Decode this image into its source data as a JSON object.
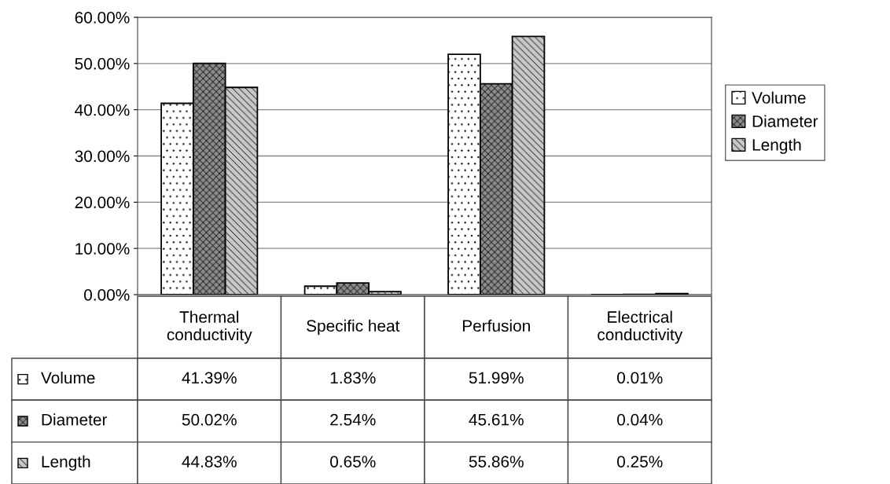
{
  "chart_data": {
    "type": "bar",
    "categories": [
      "Thermal\nconductivity",
      "Specific heat",
      "Perfusion",
      "Electrical\nconductivity"
    ],
    "series": [
      {
        "name": "Volume",
        "color": "#ffffff",
        "values": [
          41.39,
          1.83,
          51.99,
          0.01
        ],
        "value_labels": [
          "41.39%",
          "1.83%",
          "51.99%",
          "0.01%"
        ]
      },
      {
        "name": "Diameter",
        "color": "#8c8c8c",
        "values": [
          50.02,
          2.54,
          45.61,
          0.04
        ],
        "value_labels": [
          "50.02%",
          "2.54%",
          "45.61%",
          "0.04%"
        ]
      },
      {
        "name": "Length",
        "color": "#c8c8c8",
        "values": [
          44.83,
          0.65,
          55.86,
          0.25
        ],
        "value_labels": [
          "44.83%",
          "0.65%",
          "55.86%",
          "0.25%"
        ]
      }
    ],
    "ylim": [
      0,
      60
    ],
    "yticks": [
      {
        "value": 0,
        "label": "0.00%"
      },
      {
        "value": 10,
        "label": "10.00%"
      },
      {
        "value": 20,
        "label": "20.00%"
      },
      {
        "value": 30,
        "label": "30.00%"
      },
      {
        "value": 40,
        "label": "40.00%"
      },
      {
        "value": 50,
        "label": "50.00%"
      },
      {
        "value": 60,
        "label": "60.00%"
      }
    ],
    "grid": "y",
    "legend": "right"
  }
}
